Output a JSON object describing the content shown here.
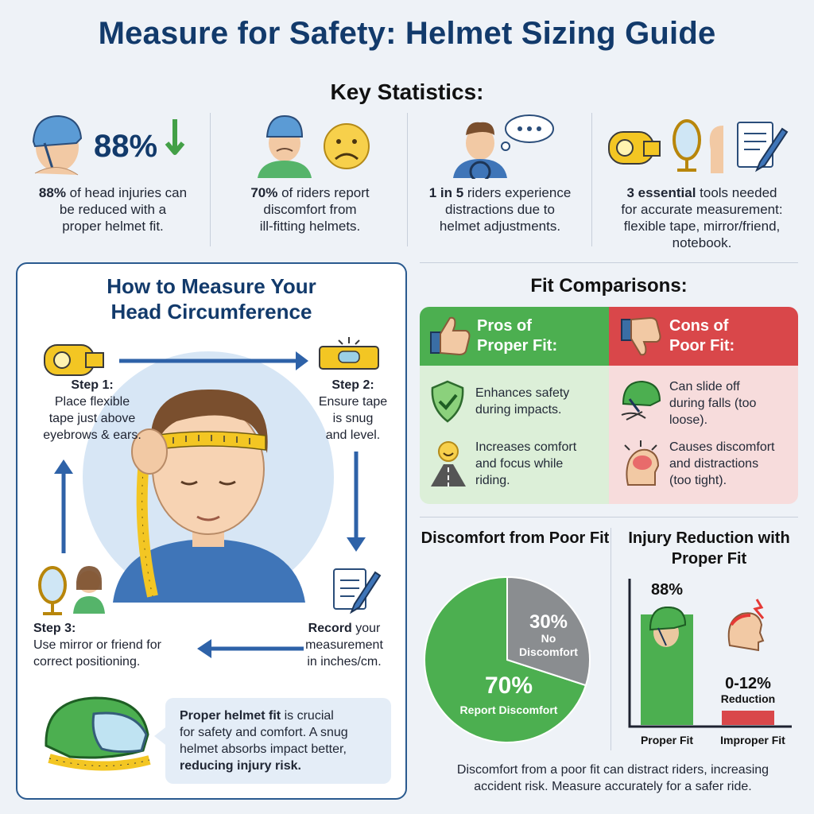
{
  "header": {
    "title": "Measure for Safety: Helmet Sizing Guide",
    "subtitle": "Key Statistics:"
  },
  "stats": [
    {
      "icon": "helmet-head-icon",
      "big": "88%",
      "bold": "88%",
      "line1": " of head injuries can",
      "line2": "be reduced with a",
      "line3": "proper helmet fit."
    },
    {
      "icon": "uncomfortable-rider-icon",
      "bold": "70%",
      "line1": " of riders report",
      "line2": "discomfort from",
      "line3": "ill-fitting helmets."
    },
    {
      "icon": "distracted-rider-icon",
      "bold": "1 in 5",
      "line1": " riders experience",
      "line2": "distractions due to",
      "line3": "helmet adjustments."
    },
    {
      "icon": "tools-icon",
      "bold": "3 essential",
      "line1": " tools needed",
      "line2": "for accurate measurement:",
      "line3": "flexible tape, mirror/friend,",
      "line4": "notebook."
    }
  ],
  "measure": {
    "title_line1": "How to Measure Your",
    "title_line2": "Head Circumference",
    "step1": {
      "label": "Step 1:",
      "l1": "Place flexible",
      "l2": "tape just above",
      "l3": "eyebrows & ears."
    },
    "step2": {
      "label": "Step 2:",
      "l1": "Ensure tape",
      "l2": "is snug",
      "l3": "and level."
    },
    "step3": {
      "label": "Step 3:",
      "l1": "Use mirror or friend for",
      "l2": "correct positioning."
    },
    "step4": {
      "label": "Record",
      "l1": " your",
      "l2": "measurement",
      "l3": "in inches/cm."
    },
    "callout": {
      "bold1": "Proper helmet fit",
      "t1": " is crucial",
      "t2": "for safety and comfort. A snug",
      "t3": "helmet absorbs impact better,",
      "bold2": "reducing injury risk."
    }
  },
  "fit": {
    "title": "Fit Comparisons:",
    "pros": {
      "l1": "Pros of",
      "l2": "Proper Fit:",
      "items": [
        {
          "l1": "Enhances safety",
          "l2": "during impacts."
        },
        {
          "l1": "Increases comfort",
          "l2": "and focus while",
          "l3": "riding."
        }
      ]
    },
    "cons": {
      "l1": "Cons of",
      "l2": "Poor Fit:",
      "items": [
        {
          "l1": "Can slide off",
          "l2": "during falls (too",
          "l3": "loose)."
        },
        {
          "l1": "Causes discomfort",
          "l2": "and distractions",
          "l3": "(too tight)."
        }
      ]
    },
    "colors": {
      "pro_head": "#4caf50",
      "pro_body": "#dcefd8",
      "con_head": "#d9474a",
      "con_body": "#f7dcdc"
    }
  },
  "chart_data": [
    {
      "type": "pie",
      "title": "Discomfort from Poor Fit",
      "slices": [
        {
          "label": "Report Discomfort",
          "value": 70,
          "value_label": "70%",
          "color": "#4caf50"
        },
        {
          "label": "No Discomfort",
          "value": 30,
          "value_label": "30%",
          "color": "#8a8d90"
        }
      ]
    },
    {
      "type": "bar",
      "title": "Injury Reduction with Proper Fit",
      "categories": [
        "Proper Fit",
        "Improper Fit"
      ],
      "values": [
        88,
        12
      ],
      "value_labels": [
        "88%",
        "0-12%"
      ],
      "sub_label": "Reduction",
      "colors": [
        "#4caf50",
        "#d9474a"
      ],
      "ylim": [
        0,
        100
      ]
    }
  ],
  "footer": {
    "l1": "Discomfort from a poor fit can distract riders, increasing",
    "l2": "accident risk. Measure accurately for a safer ride."
  }
}
